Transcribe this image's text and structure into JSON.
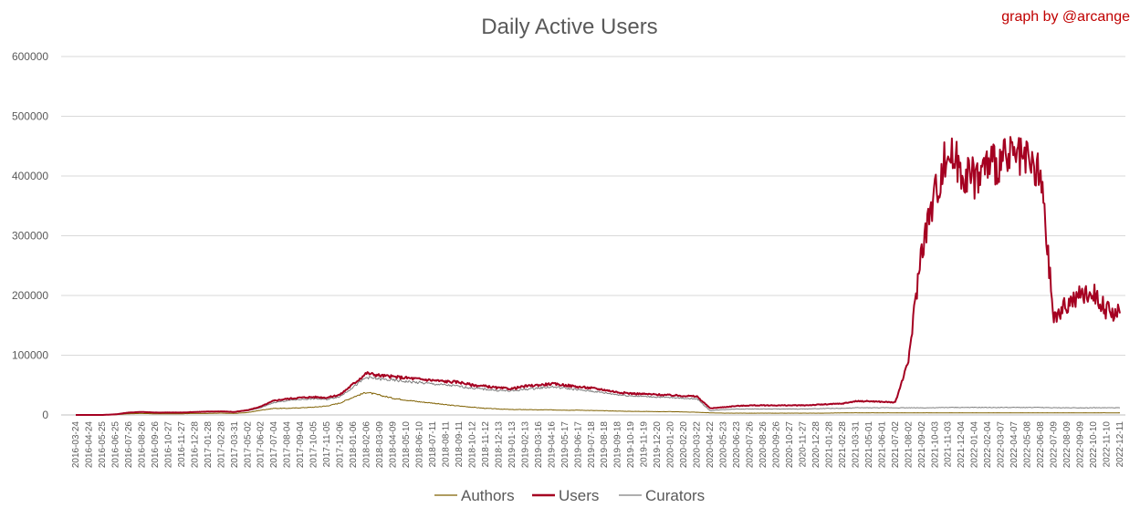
{
  "chart_data": {
    "type": "line",
    "title": "Daily Active Users",
    "credit": "graph by @arcange",
    "ylim": [
      0,
      600000
    ],
    "yticks": [
      "0",
      "100000",
      "200000",
      "300000",
      "400000",
      "500000",
      "600000"
    ],
    "grid": true,
    "legend_position": "bottom",
    "x": [
      "2016-03-24",
      "2016-04-24",
      "2016-05-25",
      "2016-06-25",
      "2016-07-26",
      "2016-08-26",
      "2016-09-26",
      "2016-10-27",
      "2016-11-27",
      "2016-12-28",
      "2017-01-28",
      "2017-02-28",
      "2017-03-31",
      "2017-05-02",
      "2017-06-02",
      "2017-07-04",
      "2017-08-04",
      "2017-09-04",
      "2017-10-05",
      "2017-11-05",
      "2017-12-06",
      "2018-01-06",
      "2018-02-06",
      "2018-03-09",
      "2018-04-09",
      "2018-05-10",
      "2018-06-10",
      "2018-07-11",
      "2018-08-11",
      "2018-09-11",
      "2018-10-12",
      "2018-11-12",
      "2018-12-13",
      "2019-01-13",
      "2019-02-13",
      "2019-03-16",
      "2019-04-16",
      "2019-05-17",
      "2019-06-17",
      "2019-07-18",
      "2019-08-18",
      "2019-09-18",
      "2019-10-19",
      "2019-11-19",
      "2019-12-20",
      "2020-01-20",
      "2020-02-20",
      "2020-03-22",
      "2020-04-22",
      "2020-05-23",
      "2020-06-23",
      "2020-07-26",
      "2020-08-26",
      "2020-09-26",
      "2020-10-27",
      "2020-11-27",
      "2020-12-28",
      "2021-01-28",
      "2021-02-28",
      "2021-03-31",
      "2021-05-01",
      "2021-06-01",
      "2021-07-02",
      "2021-08-02",
      "2021-09-02",
      "2021-10-03",
      "2021-11-03",
      "2021-12-04",
      "2022-01-04",
      "2022-02-04",
      "2022-03-07",
      "2022-04-07",
      "2022-05-08",
      "2022-06-08",
      "2022-07-09",
      "2022-08-09",
      "2022-09-09",
      "2022-10-10",
      "2022-11-10",
      "2022-12-11"
    ],
    "series": [
      {
        "name": "Authors",
        "color": "#7f6000",
        "values": [
          0,
          0,
          0,
          500,
          2000,
          2500,
          2000,
          2000,
          2000,
          2500,
          2500,
          3000,
          2500,
          4000,
          8000,
          11000,
          11000,
          12000,
          13000,
          15000,
          20000,
          30000,
          38000,
          33000,
          28000,
          25000,
          22000,
          20000,
          17000,
          15000,
          13000,
          11000,
          10000,
          9000,
          9000,
          8500,
          8500,
          8000,
          8000,
          7500,
          7000,
          6500,
          6000,
          6000,
          5500,
          5500,
          5000,
          4500,
          3500,
          3000,
          3000,
          3000,
          3000,
          3000,
          3000,
          3000,
          3000,
          3000,
          3500,
          3500,
          3500,
          3500,
          3500,
          3500,
          3500,
          3500,
          3500,
          3500,
          3500,
          3500,
          3500,
          3500,
          3500,
          3500,
          3500,
          3500,
          3500,
          3500,
          3500,
          3500
        ]
      },
      {
        "name": "Users",
        "color": "#a50021",
        "values": [
          0,
          0,
          0,
          1000,
          4000,
          5000,
          4000,
          4000,
          4000,
          5000,
          5500,
          6000,
          5000,
          8000,
          14000,
          24000,
          27000,
          29000,
          30000,
          29000,
          34000,
          52000,
          70000,
          66000,
          64000,
          62000,
          60000,
          58000,
          56000,
          55000,
          50000,
          48000,
          45000,
          44000,
          48000,
          50000,
          52000,
          50000,
          47000,
          45000,
          42000,
          38000,
          36000,
          35000,
          34000,
          33000,
          32000,
          31000,
          11000,
          13000,
          15000,
          16000,
          16000,
          16000,
          16000,
          16000,
          17000,
          18000,
          19000,
          23000,
          23000,
          22000,
          21000,
          90000,
          280000,
          370000,
          440000,
          410000,
          395000,
          420000,
          425000,
          430000,
          420000,
          400000,
          160000,
          185000,
          200000,
          205000,
          175000,
          170000
        ]
      },
      {
        "name": "Curators",
        "color": "#7f7f7f",
        "values": [
          0,
          0,
          0,
          800,
          3500,
          4500,
          3500,
          3500,
          3500,
          4500,
          5000,
          5500,
          4500,
          7000,
          12000,
          21000,
          24000,
          26000,
          27000,
          26000,
          31000,
          47000,
          63000,
          60000,
          58000,
          56000,
          54000,
          52000,
          50000,
          48000,
          45000,
          43000,
          41000,
          40000,
          43000,
          45000,
          47000,
          45000,
          42000,
          40000,
          37000,
          34000,
          32000,
          31000,
          30000,
          29000,
          28000,
          27000,
          7000,
          9000,
          10000,
          10000,
          10000,
          10000,
          10000,
          10000,
          10500,
          11000,
          11000,
          12000,
          12000,
          12000,
          12000,
          12000,
          12000,
          12000,
          12500,
          12500,
          12500,
          12500,
          12500,
          12500,
          12500,
          12500,
          12000,
          12000,
          12000,
          12000,
          12000,
          12000
        ]
      }
    ]
  }
}
